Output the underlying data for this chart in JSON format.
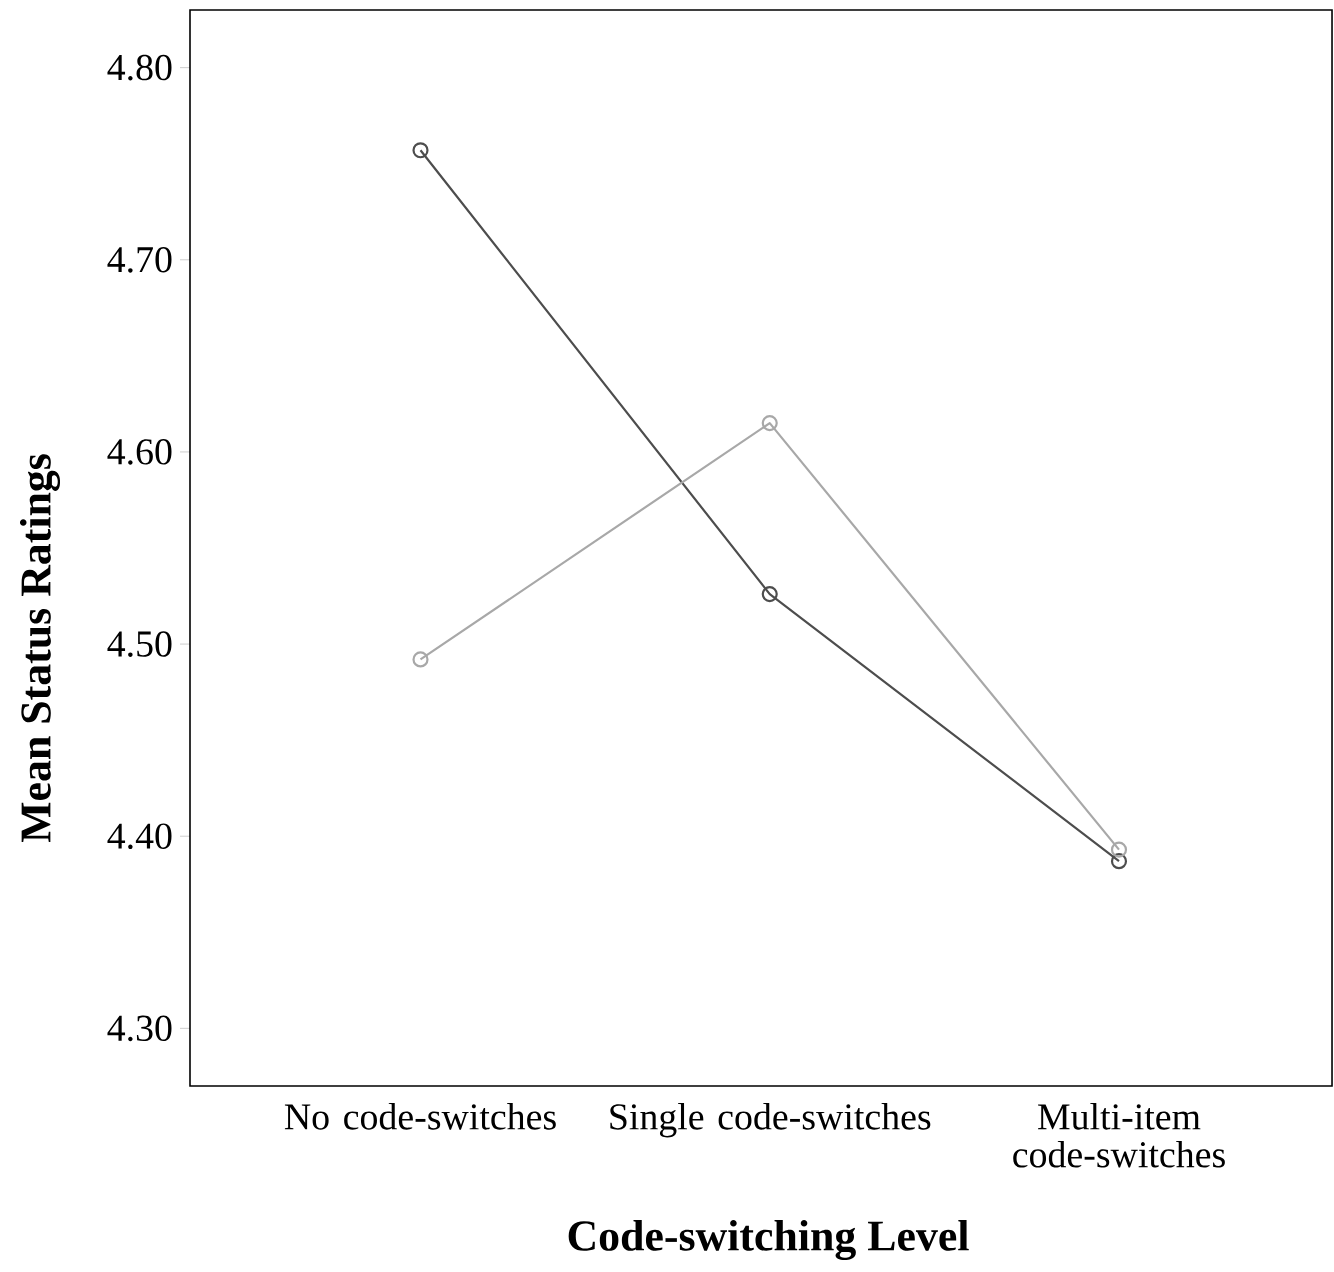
{
  "chart_data": {
    "type": "line",
    "xlabel": "Code-switching Level",
    "ylabel": "Mean Status Ratings",
    "categories": [
      "No code-switches",
      "Single code-switches",
      "Multi-item code-switches"
    ],
    "series": [
      {
        "color": "#4d4d4d",
        "values": [
          4.757,
          4.526,
          4.387
        ]
      },
      {
        "color": "#a8a8a8",
        "values": [
          4.492,
          4.615,
          4.393
        ]
      }
    ],
    "ylim": [
      4.27,
      4.83
    ],
    "yticks": [
      {
        "value": 4.3,
        "label": "4.30"
      },
      {
        "value": 4.4,
        "label": "4.40"
      },
      {
        "value": 4.5,
        "label": "4.50"
      },
      {
        "value": 4.6,
        "label": "4.60"
      },
      {
        "value": 4.7,
        "label": "4.70"
      },
      {
        "value": 4.8,
        "label": "4.80"
      }
    ],
    "marker": "circle",
    "line_style": "solid",
    "grid": false
  }
}
